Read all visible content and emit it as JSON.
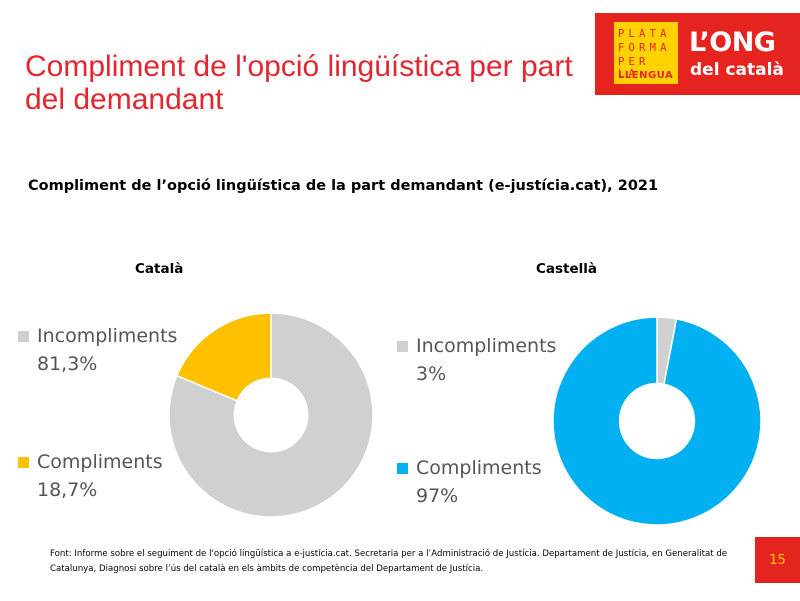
{
  "slide_title": "Compliment de l'opció lingüística per part del demandant",
  "logo": {
    "box_lines": [
      "PLATA",
      "FORMA",
      "PER LA",
      "LLENGUA"
    ],
    "big": "L’ONG",
    "small": "del català",
    "colors": {
      "background": "#e52420",
      "box": "#ffd200"
    }
  },
  "chart_data": [
    {
      "type": "pie",
      "title": "Català",
      "figure_title": "Compliment de l’opció lingüística de la part demandant (e-justícia.cat), 2021",
      "donut": true,
      "slices": [
        {
          "label": "Incompliments",
          "value": 81.3,
          "display": "81,3%",
          "color": "#d0d0d0"
        },
        {
          "label": "Compliments",
          "value": 18.7,
          "display": "18,7%",
          "color": "#ffc000"
        }
      ]
    },
    {
      "type": "pie",
      "title": "Castellà",
      "donut": true,
      "slices": [
        {
          "label": "Incompliments",
          "value": 3,
          "display": "3%",
          "color": "#d0d0d0"
        },
        {
          "label": "Compliments",
          "value": 97,
          "display": "97%",
          "color": "#00b0f0"
        }
      ]
    }
  ],
  "source": "Font: Informe sobre el seguiment de l'opció lingüística a e-justícia.cat. Secretaria per a l’Administració de Justícia. Departament de Justícia, en Generalitat de Catalunya, Diagnosi sobre l’ús del català en els àmbits de competència del Departament de Justícia.",
  "page_number": "15"
}
